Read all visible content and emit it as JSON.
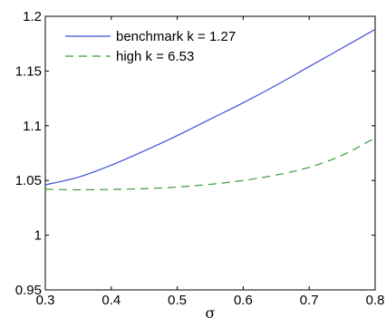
{
  "chart_data": {
    "type": "line",
    "title": "",
    "xlabel": "σ",
    "ylabel": "",
    "xlim": [
      0.3,
      0.8
    ],
    "ylim": [
      0.95,
      1.2
    ],
    "xticks": [
      "0.3",
      "0.4",
      "0.5",
      "0.6",
      "0.7",
      "0.8"
    ],
    "yticks": [
      "0.95",
      "1",
      "1.05",
      "1.1",
      "1.15",
      "1.2"
    ],
    "grid": false,
    "legend_position": "top-left",
    "x": [
      0.3,
      0.35,
      0.4,
      0.45,
      0.5,
      0.55,
      0.6,
      0.65,
      0.7,
      0.75,
      0.8
    ],
    "series": [
      {
        "name": "benchmark k = 1.27",
        "color": "#3f4fd8",
        "style": "solid",
        "values": [
          1.046,
          1.053,
          1.064,
          1.077,
          1.091,
          1.106,
          1.121,
          1.137,
          1.154,
          1.171,
          1.188
        ]
      },
      {
        "name": "high k = 6.53",
        "color": "#3a9a3a",
        "style": "dashed",
        "values": [
          1.042,
          1.0415,
          1.0418,
          1.0425,
          1.044,
          1.0465,
          1.05,
          1.055,
          1.062,
          1.073,
          1.089
        ]
      }
    ]
  }
}
